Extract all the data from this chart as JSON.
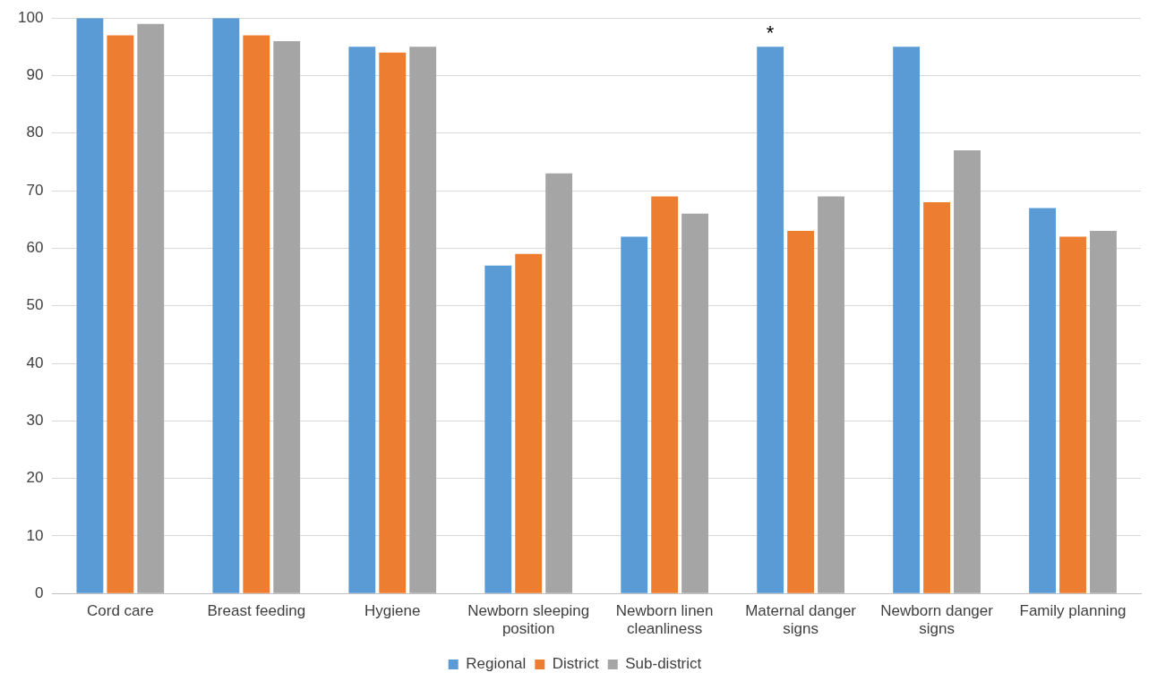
{
  "chart_data": {
    "type": "bar",
    "categories": [
      "Cord care",
      "Breast feeding",
      "Hygiene",
      "Newborn sleeping position",
      "Newborn linen cleanliness",
      "Maternal danger signs",
      "Newborn danger signs",
      "Family planning"
    ],
    "series": [
      {
        "name": "Regional",
        "color": "#5b9bd5",
        "values": [
          100,
          100,
          95,
          57,
          62,
          95,
          95,
          67
        ]
      },
      {
        "name": "District",
        "color": "#ed7d31",
        "values": [
          97,
          97,
          94,
          59,
          69,
          63,
          68,
          62
        ]
      },
      {
        "name": "Sub-district",
        "color": "#a5a5a5",
        "values": [
          99,
          96,
          95,
          73,
          66,
          69,
          77,
          63
        ]
      }
    ],
    "ylim": [
      0,
      100
    ],
    "yticks": [
      0,
      10,
      20,
      30,
      40,
      50,
      60,
      70,
      80,
      90,
      100
    ],
    "grid": "y",
    "legend": "bottom",
    "annotations": [
      "*"
    ]
  }
}
